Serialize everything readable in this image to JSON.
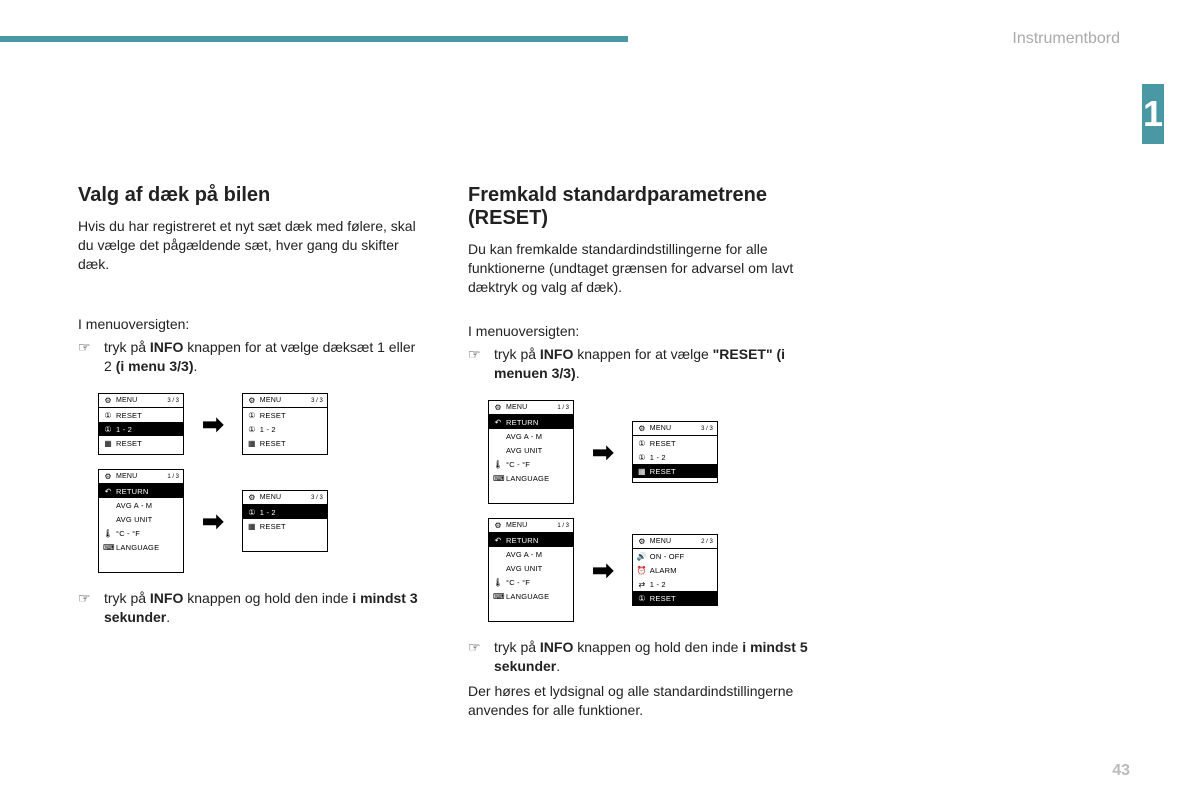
{
  "header": {
    "section": "Instrumentbord",
    "chapter": "1",
    "page": "43"
  },
  "accent_color": "#4a98a4",
  "left": {
    "title": "Valg af dæk på bilen",
    "intro": "Hvis du har registreret et nyt sæt dæk med følere, skal du vælge det pågældende sæt, hver gang du skifter dæk.",
    "lead": "I menuoversigten:",
    "step1_a": "tryk på ",
    "step1_b": "INFO",
    "step1_c": " knappen for at vælge dæksæt 1 eller 2 ",
    "step1_d": "(i menu 3/3)",
    "step1_e": ".",
    "step2_a": "tryk på ",
    "step2_b": "INFO",
    "step2_c": " knappen og hold den inde ",
    "step2_d": "i mindst 3 sekunder",
    "step2_e": "."
  },
  "right": {
    "title": "Fremkald standardparametrene (RESET)",
    "intro": "Du kan fremkalde standardindstillingerne for alle funktionerne (undtaget grænsen for advarsel om lavt dæktryk og valg af dæk).",
    "lead": "I menuoversigten:",
    "step1_a": "tryk på ",
    "step1_b": "INFO",
    "step1_c": " knappen for at vælge ",
    "step1_d": "\"RESET\" (i menuen 3/3)",
    "step1_e": ".",
    "step2_a": "tryk på ",
    "step2_b": "INFO",
    "step2_c": " knappen og hold den inde ",
    "step2_d": "i mindst 5 sekunder",
    "step2_e": ".",
    "tail": "Der høres et lydsignal og alle standardindstillingerne anvendes for alle funktioner."
  },
  "screens": {
    "menu33_reset_tire_sel": {
      "page": "3 / 3",
      "rows": [
        {
          "ico": "⚙",
          "txt": "MENU",
          "hdr": true
        },
        {
          "ico": "①",
          "txt": "RESET"
        },
        {
          "ico": "①",
          "txt": "1 - 2",
          "inv": true
        },
        {
          "ico": "▦",
          "txt": "RESET"
        }
      ]
    },
    "menu33_reset_tire_unsel": {
      "page": "3 / 3",
      "rows": [
        {
          "ico": "⚙",
          "txt": "MENU",
          "hdr": true
        },
        {
          "ico": "①",
          "txt": "RESET"
        },
        {
          "ico": "①",
          "txt": "1 - 2"
        },
        {
          "ico": "▦",
          "txt": "RESET"
        }
      ]
    },
    "menu13_return": {
      "page": "1 / 3",
      "rows": [
        {
          "ico": "⚙",
          "txt": "MENU",
          "hdr": true
        },
        {
          "ico": "↶",
          "txt": "RETURN",
          "inv": true
        },
        {
          "ico": "",
          "txt": "AVG  A  -  M"
        },
        {
          "ico": "",
          "txt": "AVG UNIT"
        },
        {
          "ico": "🌡",
          "txt": "°C  -  °F"
        },
        {
          "ico": "⌨",
          "txt": "LANGUAGE"
        }
      ]
    },
    "menu33_tire_inv": {
      "page": "3 / 3",
      "rows": [
        {
          "ico": "⚙",
          "txt": "MENU",
          "hdr": true
        },
        {
          "ico": "①",
          "txt": "1 - 2",
          "inv": true
        },
        {
          "ico": "▦",
          "txt": "RESET"
        }
      ]
    },
    "menu33_reset_sel": {
      "page": "3 / 3",
      "rows": [
        {
          "ico": "⚙",
          "txt": "MENU",
          "hdr": true
        },
        {
          "ico": "①",
          "txt": "RESET"
        },
        {
          "ico": "①",
          "txt": "1 - 2"
        },
        {
          "ico": "▦",
          "txt": "RESET",
          "inv": true
        }
      ]
    },
    "menu23": {
      "page": "2 / 3",
      "rows": [
        {
          "ico": "⚙",
          "txt": "MENU",
          "hdr": true
        },
        {
          "ico": "🔊",
          "txt": "ON - OFF"
        },
        {
          "ico": "⏰",
          "txt": "ALARM"
        },
        {
          "ico": "⇄",
          "txt": "1  -  2"
        },
        {
          "ico": "①",
          "txt": "RESET",
          "inv": true
        }
      ]
    }
  }
}
